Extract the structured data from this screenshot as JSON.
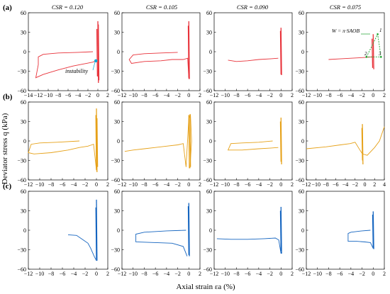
{
  "figure": {
    "row_labels": [
      "(a)",
      "(b)",
      "(c)"
    ],
    "column_titles": [
      "CSR = 0.120",
      "CSR = 0.105",
      "CSR = 0.090",
      "CSR = 0.075"
    ],
    "ylabel": "Deviator stress q (kPa)",
    "xlabel": "Axial strain εa (%)",
    "annotations": {
      "instability": "instability",
      "energy": "W = π·SAOB",
      "points": [
        "1",
        "2",
        "3"
      ]
    },
    "colors": {
      "row_a": "#e8323a",
      "row_b": "#e6a118",
      "row_c": "#1565c0",
      "annotation": "#00a8d8",
      "dashed": "#19a32c"
    }
  },
  "chart_data": [
    {
      "type": "line",
      "row": "a",
      "column": "CSR = 0.120",
      "xlim": [
        -14,
        2
      ],
      "ylim": [
        -60,
        60
      ],
      "xticks": [
        -14,
        -12,
        -10,
        -8,
        -6,
        -4,
        -2,
        0,
        2
      ],
      "yticks": [
        -60,
        -30,
        0,
        30,
        60
      ],
      "series": [
        {
          "values": [
            [
              -1,
              0
            ],
            [
              -4,
              -1
            ],
            [
              -8,
              -2
            ],
            [
              -11,
              -4
            ],
            [
              -12,
              -8
            ],
            [
              -12,
              -20
            ],
            [
              -12.5,
              -40
            ],
            [
              -11,
              -35
            ],
            [
              -8,
              -28
            ],
            [
              -5,
              -22
            ],
            [
              -3,
              -19
            ],
            [
              -1,
              -16
            ],
            [
              -0.4,
              -14
            ]
          ],
          "spikes": [
            [
              0.0,
              47,
              -48
            ],
            [
              -0.2,
              35,
              -38
            ],
            [
              0.1,
              42,
              -44
            ]
          ]
        }
      ]
    },
    {
      "type": "line",
      "row": "a",
      "column": "CSR = 0.105",
      "xlim": [
        -12,
        2
      ],
      "ylim": [
        -60,
        60
      ],
      "xticks": [
        -12,
        -10,
        -8,
        -6,
        -4,
        -2,
        0,
        2
      ],
      "yticks": [
        -60,
        -30,
        0,
        30,
        60
      ],
      "series": [
        {
          "values": [
            [
              -2,
              -1
            ],
            [
              -5,
              -2
            ],
            [
              -8,
              -3
            ],
            [
              -10,
              -5
            ],
            [
              -10.7,
              -12
            ],
            [
              -10.3,
              -18
            ],
            [
              -8,
              -15
            ],
            [
              -5,
              -14
            ],
            [
              -3,
              -12
            ],
            [
              -1,
              -12
            ],
            [
              -0.2,
              -10
            ],
            [
              0,
              -42
            ]
          ],
          "spikes": [
            [
              0.0,
              47,
              -42
            ],
            [
              -0.1,
              40,
              -40
            ]
          ]
        }
      ]
    },
    {
      "type": "line",
      "row": "a",
      "column": "CSR = 0.090",
      "xlim": [
        -12,
        2
      ],
      "ylim": [
        -60,
        60
      ],
      "xticks": [
        -12,
        -10,
        -8,
        -6,
        -4,
        -2,
        0,
        2
      ],
      "yticks": [
        -60,
        -30,
        0,
        30,
        60
      ],
      "series": [
        {
          "values": [
            [
              -9.5,
              -13
            ],
            [
              -8,
              -15
            ],
            [
              -6,
              -14
            ],
            [
              -4,
              -12
            ],
            [
              -2,
              -11
            ],
            [
              -0.5,
              -10
            ]
          ],
          "spikes": [
            [
              0.0,
              37,
              -36
            ],
            [
              -0.1,
              32,
              -35
            ]
          ]
        }
      ]
    },
    {
      "type": "line",
      "row": "a",
      "column": "CSR = 0.075",
      "xlim": [
        -12,
        2
      ],
      "ylim": [
        -60,
        60
      ],
      "xticks": [
        -12,
        -10,
        -8,
        -6,
        -4,
        -2,
        0,
        2
      ],
      "yticks": [
        -60,
        -30,
        0,
        30,
        60
      ],
      "series": [
        {
          "values": [
            [
              -8,
              -12
            ],
            [
              -6,
              -11
            ],
            [
              -4,
              -10
            ],
            [
              -2,
              -9
            ],
            [
              0,
              -8
            ]
          ],
          "spikes": [
            [
              0.0,
              27,
              -27
            ],
            [
              -0.2,
              20,
              -25
            ]
          ]
        }
      ],
      "dashed_triangle": [
        [
          -1.2,
          -8
        ],
        [
          0.8,
          27
        ],
        [
          1.4,
          -8
        ]
      ]
    },
    {
      "type": "line",
      "row": "b",
      "column": "CSR = 0.120",
      "xlim": [
        -12,
        2
      ],
      "ylim": [
        -60,
        60
      ],
      "xticks": [
        -12,
        -10,
        -8,
        -6,
        -4,
        -2,
        0,
        2
      ],
      "yticks": [
        -60,
        -30,
        0,
        30,
        60
      ],
      "series": [
        {
          "values": [
            [
              -3,
              0
            ],
            [
              -7,
              -2
            ],
            [
              -10,
              -3
            ],
            [
              -11.5,
              -5
            ],
            [
              -12,
              -18
            ],
            [
              -11,
              -20
            ],
            [
              -8,
              -18
            ],
            [
              -5,
              -14
            ],
            [
              -3,
              -10
            ],
            [
              -1.5,
              -8
            ],
            [
              -0.5,
              -5
            ],
            [
              0,
              -45
            ]
          ],
          "spikes": [
            [
              0.0,
              50,
              -48
            ],
            [
              -0.1,
              40,
              -45
            ],
            [
              0.1,
              35,
              -40
            ]
          ]
        }
      ]
    },
    {
      "type": "line",
      "row": "b",
      "column": "CSR = 0.105",
      "xlim": [
        -12,
        2
      ],
      "ylim": [
        -60,
        60
      ],
      "xticks": [
        -12,
        -10,
        -8,
        -6,
        -4,
        -2,
        0,
        2
      ],
      "yticks": [
        -60,
        -30,
        0,
        30,
        60
      ],
      "series": [
        {
          "values": [
            [
              -11.5,
              -16
            ],
            [
              -10,
              -14
            ],
            [
              -8,
              -12
            ],
            [
              -6,
              -10
            ],
            [
              -4,
              -8
            ],
            [
              -2,
              -6
            ],
            [
              -1,
              -4
            ],
            [
              -0.5,
              -40
            ],
            [
              0,
              35
            ],
            [
              0.3,
              40
            ],
            [
              0.5,
              0
            ],
            [
              0.2,
              -42
            ]
          ],
          "spikes": [
            [
              0.0,
              40,
              -42
            ],
            [
              0.2,
              41,
              -40
            ]
          ]
        }
      ]
    },
    {
      "type": "line",
      "row": "b",
      "column": "CSR = 0.090",
      "xlim": [
        -12,
        2
      ],
      "ylim": [
        -60,
        60
      ],
      "xticks": [
        -12,
        -10,
        -8,
        -6,
        -4,
        -2,
        0,
        2
      ],
      "yticks": [
        -60,
        -30,
        0,
        30,
        60
      ],
      "series": [
        {
          "values": [
            [
              -1.5,
              0
            ],
            [
              -4,
              -2
            ],
            [
              -7,
              -3
            ],
            [
              -9,
              -4
            ],
            [
              -9.5,
              -14
            ],
            [
              -7,
              -14
            ],
            [
              -4,
              -12
            ],
            [
              -2,
              -11
            ],
            [
              -0.5,
              -10
            ]
          ],
          "spikes": [
            [
              0.0,
              36,
              -36
            ],
            [
              -0.1,
              30,
              -32
            ]
          ]
        }
      ]
    },
    {
      "type": "line",
      "row": "b",
      "column": "CSR = 0.075",
      "xlim": [
        -12,
        4
      ],
      "ylim": [
        -60,
        60
      ],
      "xticks": [
        -12,
        -10,
        -8,
        -6,
        -4,
        -2,
        0,
        2,
        4
      ],
      "yticks": [
        -60,
        -30,
        0,
        30,
        60
      ],
      "series": [
        {
          "values": [
            [
              -12,
              -12
            ],
            [
              -8,
              -9
            ],
            [
              -5,
              -6
            ],
            [
              -3,
              -4
            ],
            [
              -2,
              -2
            ],
            [
              -1,
              -14
            ],
            [
              -0.5,
              -20
            ],
            [
              0.5,
              -22
            ],
            [
              2,
              -10
            ],
            [
              3,
              0
            ],
            [
              4,
              22
            ]
          ],
          "spikes": [
            [
              -0.5,
              26,
              -36
            ],
            [
              -0.6,
              20,
              -30
            ]
          ]
        }
      ]
    },
    {
      "type": "line",
      "row": "c",
      "column": "CSR = 0.120",
      "xlim": [
        -12,
        2
      ],
      "ylim": [
        -60,
        60
      ],
      "xticks": [
        -12,
        -10,
        -8,
        -6,
        -4,
        -2,
        0,
        2
      ],
      "yticks": [
        -60,
        -30,
        0,
        30,
        60
      ],
      "series": [
        {
          "values": [
            [
              -5,
              -7
            ],
            [
              -3.5,
              -8
            ],
            [
              -2.5,
              -14
            ],
            [
              -1.5,
              -20
            ],
            [
              -1,
              -28
            ],
            [
              -0.4,
              -40
            ],
            [
              0,
              -47
            ]
          ],
          "spikes": [
            [
              0.0,
              47,
              -47
            ],
            [
              -0.1,
              35,
              -45
            ]
          ]
        }
      ]
    },
    {
      "type": "line",
      "row": "c",
      "column": "CSR = 0.105",
      "xlim": [
        -12,
        2
      ],
      "ylim": [
        -60,
        60
      ],
      "xticks": [
        -12,
        -10,
        -8,
        -6,
        -4,
        -2,
        0,
        2
      ],
      "yticks": [
        -60,
        -30,
        0,
        30,
        60
      ],
      "series": [
        {
          "values": [
            [
              -0.5,
              0
            ],
            [
              -4,
              -1
            ],
            [
              -8,
              -3
            ],
            [
              -9.5,
              -6
            ],
            [
              -9.5,
              -18
            ],
            [
              -6,
              -19
            ],
            [
              -3,
              -20
            ],
            [
              -1,
              -25
            ],
            [
              -0.3,
              -40
            ]
          ],
          "spikes": [
            [
              0.0,
              42,
              -40
            ],
            [
              -0.1,
              37,
              -38
            ]
          ]
        }
      ]
    },
    {
      "type": "line",
      "row": "c",
      "column": "CSR = 0.090",
      "xlim": [
        -12,
        2
      ],
      "ylim": [
        -60,
        60
      ],
      "xticks": [
        -12,
        -10,
        -8,
        -6,
        -4,
        -2,
        0,
        2
      ],
      "yticks": [
        -60,
        -30,
        0,
        30,
        60
      ],
      "series": [
        {
          "values": [
            [
              -11.5,
              -13
            ],
            [
              -9,
              -14
            ],
            [
              -6,
              -14
            ],
            [
              -3,
              -13
            ],
            [
              -1,
              -12
            ],
            [
              -0.4,
              -15
            ],
            [
              0,
              -36
            ]
          ],
          "spikes": [
            [
              0.0,
              36,
              -36
            ],
            [
              -0.1,
              30,
              -32
            ]
          ]
        }
      ]
    },
    {
      "type": "line",
      "row": "c",
      "column": "CSR = 0.075",
      "xlim": [
        -12,
        2
      ],
      "ylim": [
        -60,
        60
      ],
      "xticks": [
        -12,
        -10,
        -8,
        -6,
        -4,
        -2,
        0,
        2
      ],
      "yticks": [
        -60,
        -30,
        0,
        30,
        60
      ],
      "series": [
        {
          "values": [
            [
              -0.5,
              0
            ],
            [
              -2,
              -1
            ],
            [
              -4,
              -3
            ],
            [
              -4.5,
              -5
            ],
            [
              -4.5,
              -17
            ],
            [
              -3,
              -17
            ],
            [
              -1.5,
              -18
            ],
            [
              -0.5,
              -19
            ],
            [
              0,
              -28
            ]
          ],
          "spikes": [
            [
              0.0,
              29,
              -29
            ],
            [
              -0.1,
              24,
              -27
            ]
          ]
        }
      ]
    }
  ]
}
